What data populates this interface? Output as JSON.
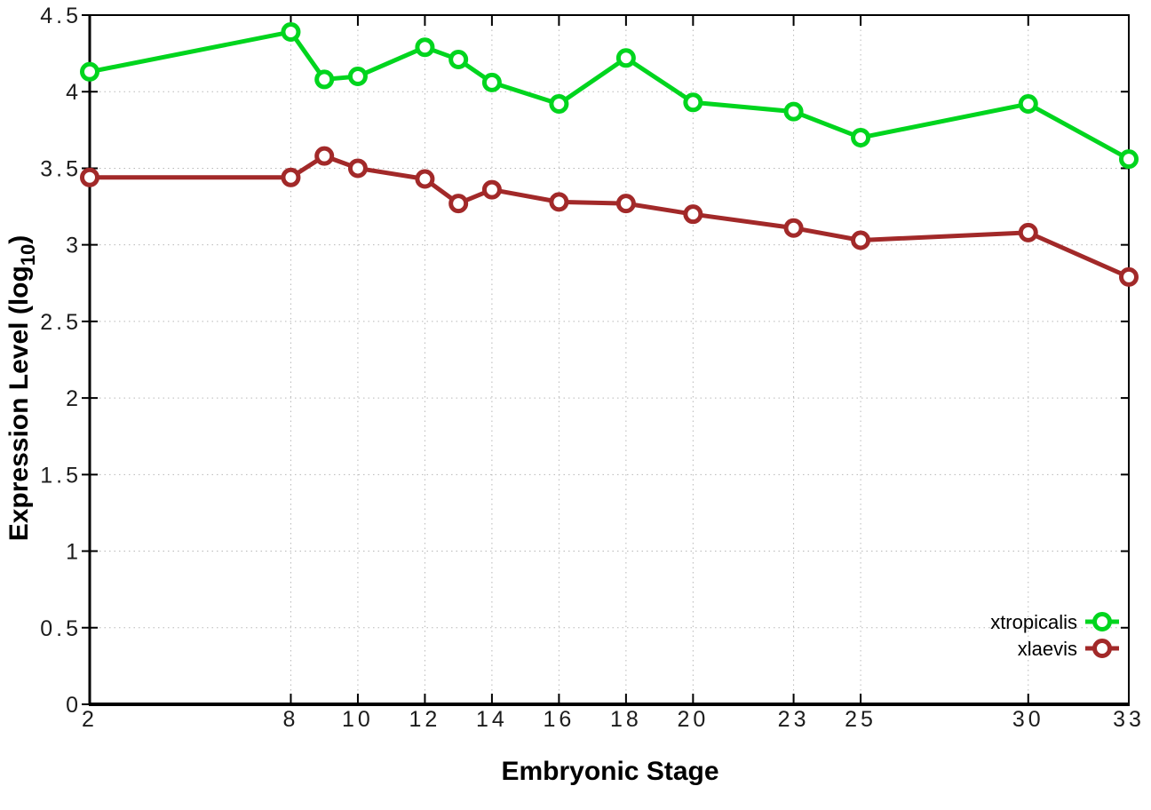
{
  "figure": {
    "background": "#ffffff"
  },
  "chart_data": {
    "type": "line",
    "title": "",
    "xlabel": "Embryonic Stage",
    "ylabel": "Expression Level (log10)",
    "ylabel_rich": {
      "pre": "Expression Level (log",
      "sub": "10",
      "post": ")"
    },
    "xlim": [
      2,
      33
    ],
    "ylim": [
      0,
      4.5
    ],
    "x_ticks": [
      2,
      8,
      10,
      12,
      14,
      16,
      18,
      20,
      23,
      25,
      30,
      33
    ],
    "y_ticks": [
      0,
      0.5,
      1,
      1.5,
      2,
      2.5,
      3,
      3.5,
      4,
      4.5
    ],
    "grid": true,
    "legend_position": "bottom-right",
    "x": [
      2,
      8,
      9,
      10,
      12,
      13,
      14,
      16,
      18,
      20,
      23,
      25,
      30,
      33
    ],
    "series": [
      {
        "name": "xtropicalis",
        "color": "#00d51e",
        "marker": "open-circle",
        "values": [
          4.13,
          4.39,
          4.08,
          4.1,
          4.29,
          4.21,
          4.06,
          3.92,
          4.22,
          3.93,
          3.87,
          3.7,
          3.92,
          3.56
        ]
      },
      {
        "name": "xlaevis",
        "color": "#a22929",
        "marker": "open-circle",
        "values": [
          3.44,
          3.44,
          3.58,
          3.5,
          3.43,
          3.27,
          3.36,
          3.28,
          3.27,
          3.2,
          3.11,
          3.03,
          3.08,
          2.79
        ]
      }
    ]
  },
  "style": {
    "background": "#ffffff",
    "grid_color": "#b8b8b8",
    "axis_color": "#000000",
    "tick_label_color": "#1c1c1c",
    "title_color": "#000000"
  }
}
